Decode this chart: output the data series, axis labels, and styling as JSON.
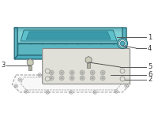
{
  "bg_color": "#ffffff",
  "pan_top_color": "#7ecfd4",
  "pan_side_color": "#5ab5c0",
  "pan_edge_color": "#2a6a78",
  "pan_inner_color": "#5dc0cb",
  "pan_inner_dark": "#3a9aaa",
  "gasket_color": "#ffffff",
  "gasket_edge_color": "#999999",
  "plug_color": "#7ecfd4",
  "plug_inner_color": "#4aaabb",
  "bolt_color": "#ccccbb",
  "bolt_edge": "#777777",
  "plate_color": "#e0e0d8",
  "plate_edge": "#888888",
  "label_color": "#333333",
  "line_color": "#555555",
  "figsize": [
    2.0,
    1.47
  ],
  "dpi": 100
}
